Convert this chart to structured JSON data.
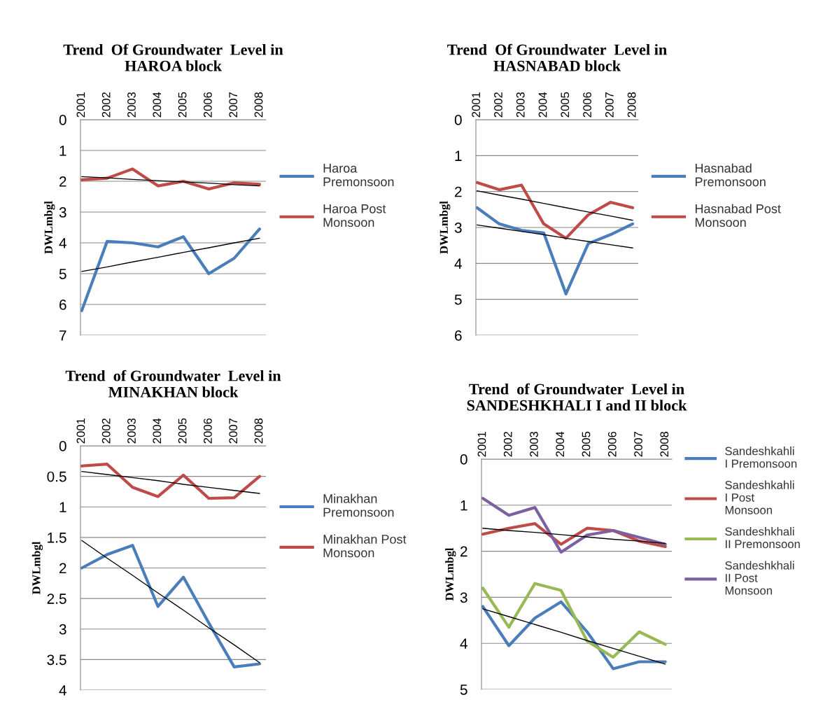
{
  "chart_data": [
    {
      "type": "line",
      "title": "Trend  Of Groundwater  Level in HAROA block",
      "ylabel": "DWLmbgl",
      "categories": [
        "2001",
        "2002",
        "2003",
        "2004",
        "2005",
        "2006",
        "2007",
        "2008"
      ],
      "ylim": [
        7,
        0
      ],
      "yticks": [
        0,
        1,
        2,
        3,
        4,
        5,
        6,
        7
      ],
      "grid": "y",
      "legend": "right",
      "series": [
        {
          "name": "Haroa Premonsoon",
          "color": "#4a7ebb",
          "values": [
            6.2,
            3.95,
            4.0,
            4.13,
            3.8,
            5.0,
            4.5,
            3.55
          ]
        },
        {
          "name": "Haroa Post Monsoon",
          "color": "#be4b48",
          "values": [
            1.95,
            1.9,
            1.6,
            2.15,
            2.0,
            2.25,
            2.05,
            2.1
          ]
        },
        {
          "color": "#000000",
          "values": [
            4.93,
            4.78,
            4.62,
            4.47,
            4.31,
            4.16,
            4.0,
            3.85
          ]
        },
        {
          "color": "#000000",
          "values": [
            1.85,
            1.89,
            1.94,
            1.98,
            2.02,
            2.06,
            2.11,
            2.15
          ]
        }
      ]
    },
    {
      "type": "line",
      "title": "Trend  Of Groundwater  Level in HASNABAD block",
      "ylabel": "DWLmbgl",
      "categories": [
        "2001",
        "2002",
        "2003",
        "2004",
        "2005",
        "2006",
        "2007",
        "2008"
      ],
      "ylim": [
        6,
        0
      ],
      "yticks": [
        0,
        1,
        2,
        3,
        4,
        5,
        6
      ],
      "grid": "y",
      "legend": "right",
      "series": [
        {
          "name": "Hasnabad Premonsoon",
          "color": "#4a7ebb",
          "values": [
            2.45,
            2.9,
            3.08,
            3.15,
            4.85,
            3.45,
            3.2,
            2.9
          ]
        },
        {
          "name": "Hasnabad Post Monsoon",
          "color": "#be4b48",
          "values": [
            1.75,
            1.95,
            1.82,
            2.9,
            3.3,
            2.65,
            2.3,
            2.45
          ]
        },
        {
          "color": "#000000",
          "values": [
            2.93,
            3.02,
            3.11,
            3.2,
            3.3,
            3.39,
            3.48,
            3.57
          ]
        },
        {
          "color": "#000000",
          "values": [
            1.98,
            2.1,
            2.21,
            2.33,
            2.45,
            2.57,
            2.68,
            2.8
          ]
        }
      ]
    },
    {
      "type": "line",
      "title": "Trend  of Groundwater  Level in MINAKHAN block",
      "ylabel": "DWLmbgl",
      "categories": [
        "2001",
        "2002",
        "2003",
        "2004",
        "2005",
        "2006",
        "2007",
        "2008"
      ],
      "ylim": [
        4,
        0
      ],
      "yticks": [
        0,
        0.5,
        1,
        1.5,
        2,
        2.5,
        3,
        3.5,
        4
      ],
      "grid": "y",
      "legend": "right",
      "series": [
        {
          "name": "Minakhan Premonsoon",
          "color": "#4a7ebb",
          "values": [
            2.0,
            1.78,
            1.63,
            2.63,
            2.15,
            2.9,
            3.62,
            3.57
          ]
        },
        {
          "name": "Minakhan Post Monsoon",
          "color": "#be4b48",
          "values": [
            0.33,
            0.3,
            0.68,
            0.83,
            0.48,
            0.86,
            0.85,
            0.5
          ]
        },
        {
          "color": "#000000",
          "values": [
            1.55,
            1.84,
            2.12,
            2.41,
            2.69,
            2.98,
            3.26,
            3.55
          ]
        },
        {
          "color": "#000000",
          "values": [
            0.42,
            0.47,
            0.52,
            0.57,
            0.63,
            0.68,
            0.73,
            0.78
          ]
        }
      ]
    },
    {
      "type": "line",
      "title": "Trend  of Groundwater  Level in SANDESHKHALI I and II block",
      "ylabel": "DWLmbgl",
      "categories": [
        "2001",
        "2002",
        "2003",
        "2004",
        "2005",
        "2006",
        "2007",
        "2008"
      ],
      "ylim": [
        5,
        0
      ],
      "yticks": [
        0,
        1,
        2,
        3,
        4,
        5
      ],
      "grid": "y",
      "legend": "right",
      "series": [
        {
          "name": "Sandeshkahli I Premonsoon",
          "color": "#4a7ebb",
          "values": [
            3.2,
            4.05,
            3.45,
            3.1,
            3.75,
            4.55,
            4.4,
            4.4
          ]
        },
        {
          "name": "Sandeshkahli I Post Monsoon",
          "color": "#be4b48",
          "values": [
            1.63,
            1.5,
            1.4,
            1.85,
            1.5,
            1.55,
            1.78,
            1.9
          ]
        },
        {
          "name": "Sandeshkhali II Premonsoon",
          "color": "#98b954",
          "values": [
            2.8,
            3.65,
            2.7,
            2.85,
            3.95,
            4.3,
            3.75,
            4.02
          ]
        },
        {
          "name": "Sandeshkhali II Post Monsoon",
          "color": "#7d60a0",
          "values": [
            0.85,
            1.22,
            1.05,
            2.02,
            1.65,
            1.55,
            1.7,
            1.85
          ]
        },
        {
          "color": "#000000",
          "values": [
            1.5,
            1.55,
            1.59,
            1.64,
            1.69,
            1.74,
            1.78,
            1.83
          ]
        },
        {
          "color": "#000000",
          "values": [
            3.25,
            3.42,
            3.59,
            3.76,
            3.94,
            4.11,
            4.28,
            4.45
          ]
        }
      ]
    }
  ]
}
